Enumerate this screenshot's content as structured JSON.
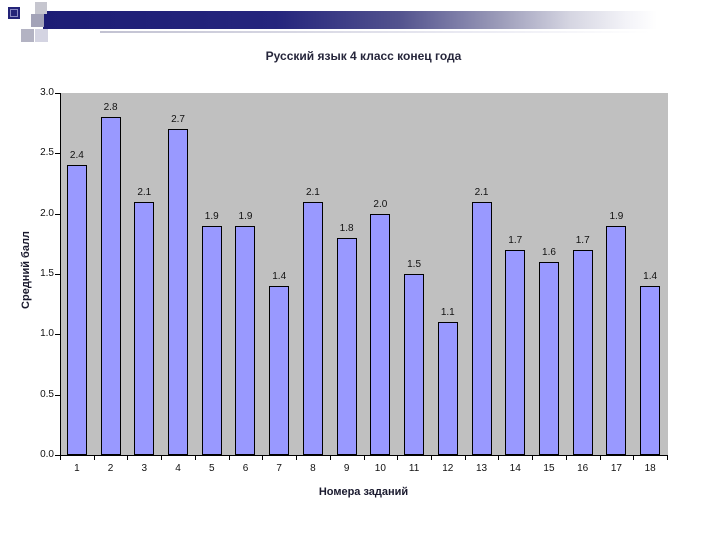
{
  "decoration": {
    "navy": "#232378",
    "navy_inner_outline": "#8a8ac2",
    "silver": "#c6c6cf",
    "medium_gray": "#a3a3b8",
    "light_gray": "#b3b3c3",
    "pale_lavender": "#d4d4e2"
  },
  "chart_data": {
    "type": "bar",
    "title": "Русский язык 4 класс конец года",
    "xlabel": "Номера заданий",
    "ylabel": "Средний балл",
    "categories": [
      "1",
      "2",
      "3",
      "4",
      "5",
      "6",
      "7",
      "8",
      "9",
      "10",
      "11",
      "12",
      "13",
      "14",
      "15",
      "16",
      "17",
      "18"
    ],
    "values": [
      2.4,
      2.8,
      2.1,
      2.7,
      1.9,
      1.9,
      1.4,
      2.1,
      1.8,
      2.0,
      1.5,
      1.1,
      2.1,
      1.7,
      1.6,
      1.7,
      1.9,
      1.4
    ],
    "value_labels": [
      "2.4",
      "2.8",
      "2.1",
      "2.7",
      "1.9",
      "1.9",
      "1.4",
      "2.1",
      "1.8",
      "2.0",
      "1.5",
      "1.1",
      "2.1",
      "1.7",
      "1.6",
      "1.7",
      "1.9",
      "1.4"
    ],
    "ylim": [
      0.0,
      3.0
    ],
    "ytick_labels": [
      "0.0",
      "0.5",
      "1.0",
      "1.5",
      "2.0",
      "2.5",
      "3.0"
    ],
    "grid": false,
    "legend": "none",
    "bar_color": "#9999FF",
    "bar_border_color": "#000000",
    "plot_background": "#C0C0C0",
    "axis_color": "#000000"
  }
}
